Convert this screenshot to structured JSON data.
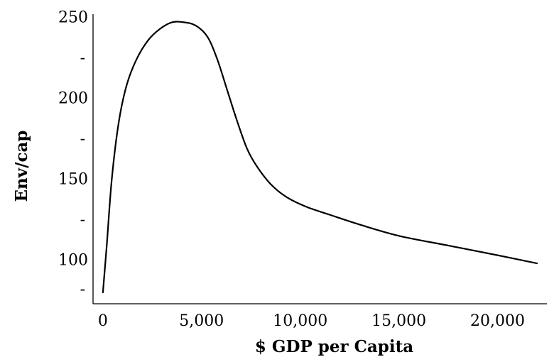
{
  "chart_data": {
    "type": "line",
    "title": "",
    "xlabel": "$ GDP per Capita",
    "ylabel": "Env/cap",
    "xlim": [
      -500,
      22500
    ],
    "ylim": [
      73,
      252
    ],
    "grid": false,
    "legend": "none",
    "x_ticks": [
      {
        "value": 0,
        "label": "0"
      },
      {
        "value": 5000,
        "label": "5,000"
      },
      {
        "value": 10000,
        "label": "10,000"
      },
      {
        "value": 15000,
        "label": "15,000"
      },
      {
        "value": 20000,
        "label": "20,000"
      }
    ],
    "y_ticks": [
      {
        "value": 250,
        "label": "250"
      },
      {
        "value": 225,
        "label": "-"
      },
      {
        "value": 200,
        "label": "200"
      },
      {
        "value": 175,
        "label": "-"
      },
      {
        "value": 150,
        "label": "150"
      },
      {
        "value": 125,
        "label": "-"
      },
      {
        "value": 100,
        "label": "100"
      },
      {
        "value": 82,
        "label": "-"
      }
    ],
    "series": [
      {
        "color": "#000000",
        "x": [
          0,
          200,
          450,
          800,
          1200,
          1700,
          2300,
          2900,
          3500,
          4100,
          4700,
          5300,
          5800,
          6300,
          6800,
          7300,
          7800,
          8500,
          9300,
          10300,
          11500,
          13000,
          15000,
          17500,
          20000,
          22000
        ],
        "y": [
          80,
          110,
          150,
          185,
          208,
          224,
          236,
          243,
          247,
          247,
          245,
          238,
          224,
          205,
          186,
          169,
          158,
          147,
          139,
          133,
          128,
          122,
          115,
          109,
          103,
          98
        ]
      }
    ]
  }
}
